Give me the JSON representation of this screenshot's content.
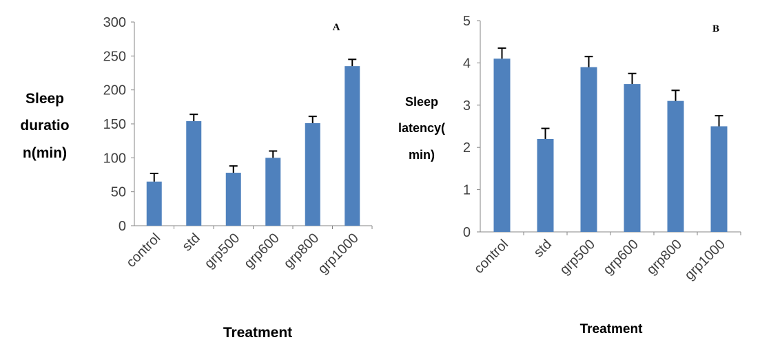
{
  "chart_data": [
    {
      "type": "bar",
      "panel_label": "A",
      "categories": [
        "control",
        "std",
        "grp500",
        "grp600",
        "grp800",
        "grp1000"
      ],
      "values": [
        65,
        154,
        78,
        100,
        151,
        235
      ],
      "errors": [
        12,
        10,
        10,
        10,
        10,
        10
      ],
      "ylabel_lines": [
        "Sleep",
        "duratio",
        "n(min)"
      ],
      "xlabel": "Treatment",
      "ylim": [
        0,
        300
      ],
      "yticks": [
        0,
        50,
        100,
        150,
        200,
        250,
        300
      ],
      "grid": false,
      "bar_color": "#4F81BD"
    },
    {
      "type": "bar",
      "panel_label": "B",
      "categories": [
        "control",
        "std",
        "grp500",
        "grp600",
        "grp800",
        "grp1000"
      ],
      "values": [
        4.1,
        2.2,
        3.9,
        3.5,
        3.1,
        2.5
      ],
      "errors": [
        0.25,
        0.25,
        0.25,
        0.25,
        0.25,
        0.25
      ],
      "ylabel_lines": [
        "Sleep",
        "latency(",
        "min)"
      ],
      "xlabel": "Treatment",
      "ylim": [
        0,
        5
      ],
      "yticks": [
        0,
        1,
        2,
        3,
        4,
        5
      ],
      "grid": false,
      "bar_color": "#4F81BD"
    }
  ]
}
